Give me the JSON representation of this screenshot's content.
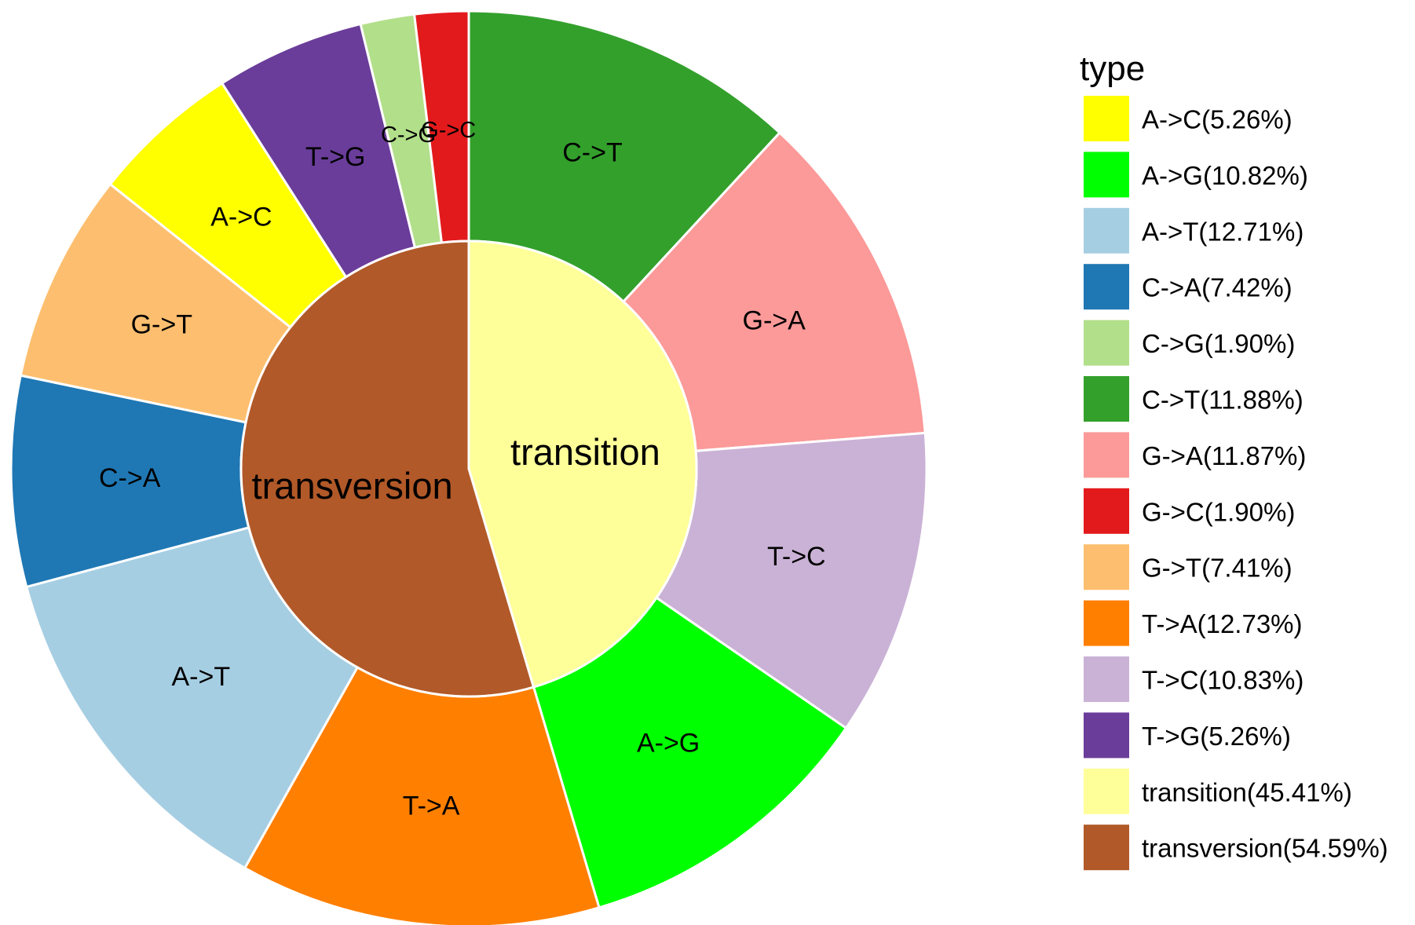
{
  "chart_data": {
    "type": "pie",
    "subtype": "donut",
    "legend": {
      "title": "type",
      "position": "right",
      "entries": [
        {
          "label": "A->C(5.26%)",
          "color": "#ffff00"
        },
        {
          "label": "A->G(10.82%)",
          "color": "#00ff00"
        },
        {
          "label": "A->T(12.71%)",
          "color": "#a6cee3"
        },
        {
          "label": "C->A(7.42%)",
          "color": "#1f78b4"
        },
        {
          "label": "C->G(1.90%)",
          "color": "#b2df8a"
        },
        {
          "label": "C->T(11.88%)",
          "color": "#33a02c"
        },
        {
          "label": "G->A(11.87%)",
          "color": "#fb9a99"
        },
        {
          "label": "G->C(1.90%)",
          "color": "#e31a1c"
        },
        {
          "label": "G->T(7.41%)",
          "color": "#fdbf6f"
        },
        {
          "label": "T->A(12.73%)",
          "color": "#ff7f00"
        },
        {
          "label": "T->C(10.83%)",
          "color": "#cab2d6"
        },
        {
          "label": "T->G(5.26%)",
          "color": "#6a3d9a"
        },
        {
          "label": "transition(45.41%)",
          "color": "#ffff99"
        },
        {
          "label": "transversion(54.59%)",
          "color": "#b15928"
        }
      ]
    },
    "inner_ring": [
      {
        "label": "transition",
        "value": 45.41,
        "color": "#ffff99"
      },
      {
        "label": "transversion",
        "value": 54.59,
        "color": "#b15928"
      }
    ],
    "outer_ring": [
      {
        "label": "C->T",
        "value": 11.88,
        "color": "#33a02c"
      },
      {
        "label": "G->A",
        "value": 11.87,
        "color": "#fb9a99"
      },
      {
        "label": "T->C",
        "value": 10.83,
        "color": "#cab2d6"
      },
      {
        "label": "A->G",
        "value": 10.82,
        "color": "#00ff00"
      },
      {
        "label": "T->A",
        "value": 12.73,
        "color": "#ff7f00"
      },
      {
        "label": "A->T",
        "value": 12.71,
        "color": "#a6cee3"
      },
      {
        "label": "C->A",
        "value": 7.42,
        "color": "#1f78b4"
      },
      {
        "label": "G->T",
        "value": 7.41,
        "color": "#fdbf6f"
      },
      {
        "label": "A->C",
        "value": 5.26,
        "color": "#ffff00"
      },
      {
        "label": "T->G",
        "value": 5.26,
        "color": "#6a3d9a"
      },
      {
        "label": "C->G",
        "value": 1.9,
        "color": "#b2df8a"
      },
      {
        "label": "G->C",
        "value": 1.9,
        "color": "#e31a1c"
      }
    ]
  }
}
